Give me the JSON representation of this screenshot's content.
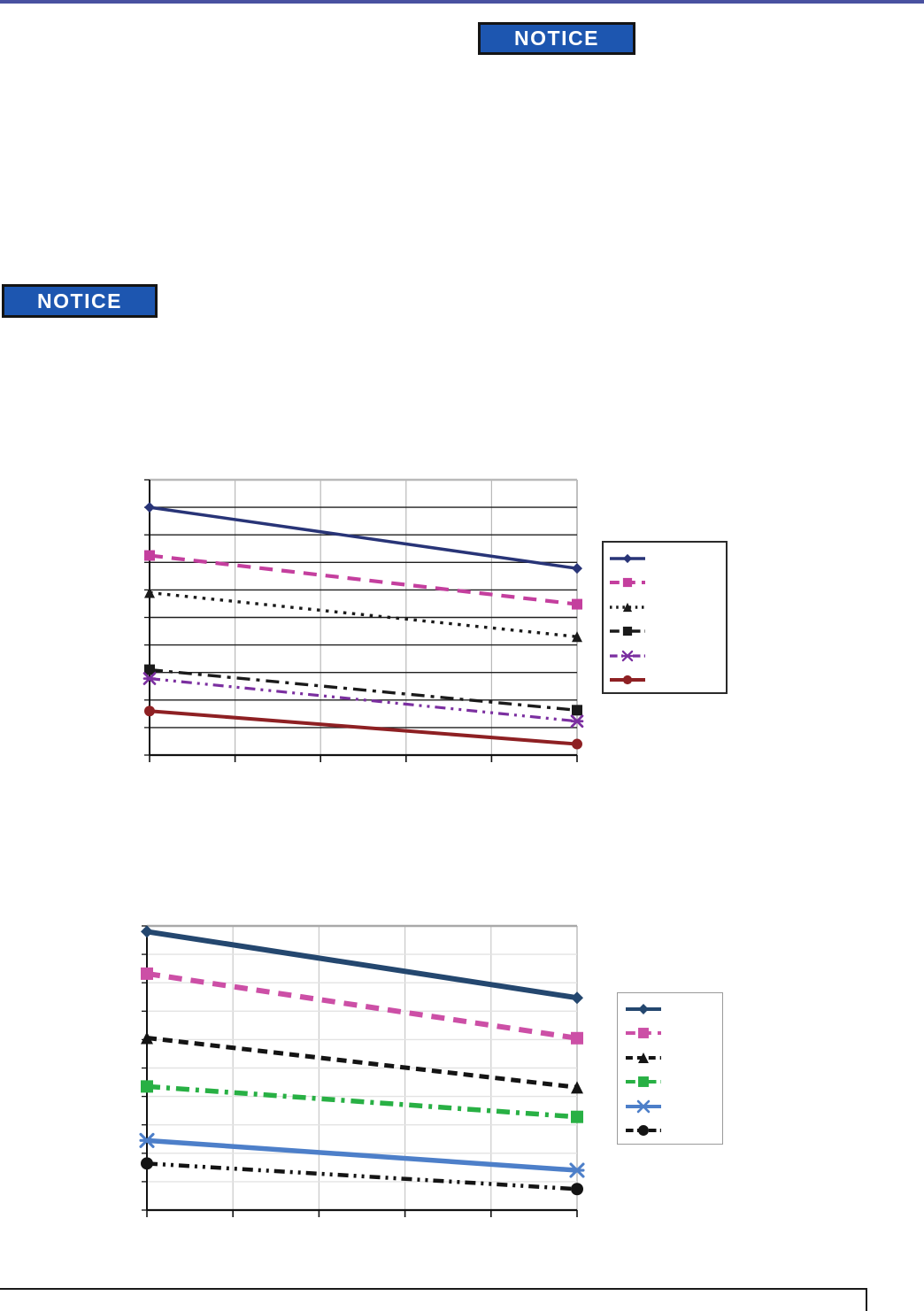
{
  "page": {
    "background": "#ffffff",
    "top_bar": {
      "color": "#4951a0"
    },
    "footer": {
      "line_color": "#1a1a1a"
    }
  },
  "notices": [
    {
      "label": "NOTICE",
      "fill": "#1d56b0",
      "border_color": "#141414",
      "text_color": "#ffffff"
    },
    {
      "label": "NOTICE",
      "fill": "#1d56b0",
      "border_color": "#141414",
      "text_color": "#ffffff"
    }
  ],
  "chart_data": [
    {
      "type": "line",
      "title": "",
      "xlabel": "",
      "ylabel": "",
      "x_range": [
        0,
        5
      ],
      "y_range": [
        0,
        10
      ],
      "x_gridlines": 5,
      "y_gridlines": 10,
      "grid": "on",
      "legend_position": "right-outside",
      "tick_labels": {
        "x": [],
        "y": []
      },
      "axis_tick_labels_visible": false,
      "marker_size": 12,
      "grid_style": {
        "h_color": "#1f1f1f",
        "v_color": "#b9b9b9",
        "top_border": "#b9b9b9",
        "right_border": "#b9b9b9",
        "axis_color": "#111111"
      },
      "series": [
        {
          "name": "series-1",
          "label": "",
          "color": "#283477",
          "dash": "solid",
          "marker": "diamond",
          "line_width": 3.5,
          "points": [
            [
              0,
              9.0
            ],
            [
              5,
              6.78
            ]
          ]
        },
        {
          "name": "series-2",
          "label": "",
          "color": "#c43f9e",
          "dash": "long-dash",
          "marker": "square",
          "line_width": 4.2,
          "points": [
            [
              0,
              7.25
            ],
            [
              5,
              5.48
            ]
          ]
        },
        {
          "name": "series-3",
          "label": "",
          "color": "#1a1a1a",
          "dash": "dot",
          "marker": "triangle",
          "line_width": 3.4,
          "points": [
            [
              0,
              5.9
            ],
            [
              5,
              4.3
            ]
          ]
        },
        {
          "name": "series-4",
          "label": "",
          "color": "#1a1a1a",
          "dash": "dash-dot",
          "marker": "square",
          "line_width": 3.4,
          "points": [
            [
              0,
              3.1
            ],
            [
              5,
              1.63
            ]
          ]
        },
        {
          "name": "series-5",
          "label": "",
          "color": "#7b2fa0",
          "dash": "dash-dot-dot",
          "marker": "asterisk",
          "line_width": 3.2,
          "points": [
            [
              0,
              2.78
            ],
            [
              5,
              1.23
            ]
          ]
        },
        {
          "name": "series-6",
          "label": "",
          "color": "#8e2023",
          "dash": "solid",
          "marker": "circle",
          "line_width": 4.0,
          "points": [
            [
              0,
              1.6
            ],
            [
              5,
              0.4
            ]
          ]
        }
      ]
    },
    {
      "type": "line",
      "title": "",
      "xlabel": "",
      "ylabel": "",
      "x_range": [
        0,
        5
      ],
      "y_range": [
        0,
        10
      ],
      "x_gridlines": 5,
      "y_gridlines": 10,
      "grid": "on",
      "legend_position": "right-outside",
      "tick_labels": {
        "x": [],
        "y": []
      },
      "axis_tick_labels_visible": false,
      "marker_size": 14,
      "grid_style": {
        "h_color": "#e3e3e3",
        "v_color": "#c9c9c9",
        "top_border": "#a9a9a9",
        "right_border": "#c9c9c9",
        "axis_color": "#111111"
      },
      "series": [
        {
          "name": "series-1",
          "label": "",
          "color": "#24476f",
          "dash": "solid",
          "marker": "diamond",
          "line_width": 6.0,
          "points": [
            [
              0,
              9.8
            ],
            [
              5,
              7.47
            ]
          ]
        },
        {
          "name": "series-2",
          "label": "",
          "color": "#cc4fa6",
          "dash": "long-dash",
          "marker": "square",
          "line_width": 6.0,
          "points": [
            [
              0,
              8.32
            ],
            [
              5,
              6.05
            ]
          ]
        },
        {
          "name": "series-3",
          "label": "",
          "color": "#141414",
          "dash": "medium-dash",
          "marker": "triangle",
          "line_width": 5.0,
          "points": [
            [
              0,
              6.06
            ],
            [
              5,
              4.32
            ]
          ]
        },
        {
          "name": "series-4",
          "label": "",
          "color": "#28b044",
          "dash": "dash-dot",
          "marker": "square",
          "line_width": 5.5,
          "points": [
            [
              0,
              4.35
            ],
            [
              5,
              3.28
            ]
          ]
        },
        {
          "name": "series-5",
          "label": "",
          "color": "#4d7fc9",
          "dash": "solid",
          "marker": "asterisk",
          "line_width": 5.5,
          "points": [
            [
              0,
              2.45
            ],
            [
              5,
              1.4
            ]
          ]
        },
        {
          "name": "series-6",
          "label": "",
          "color": "#141414",
          "dash": "dash-dot-dot",
          "marker": "circle",
          "line_width": 4.5,
          "points": [
            [
              0,
              1.64
            ],
            [
              5,
              0.74
            ]
          ]
        }
      ]
    }
  ]
}
